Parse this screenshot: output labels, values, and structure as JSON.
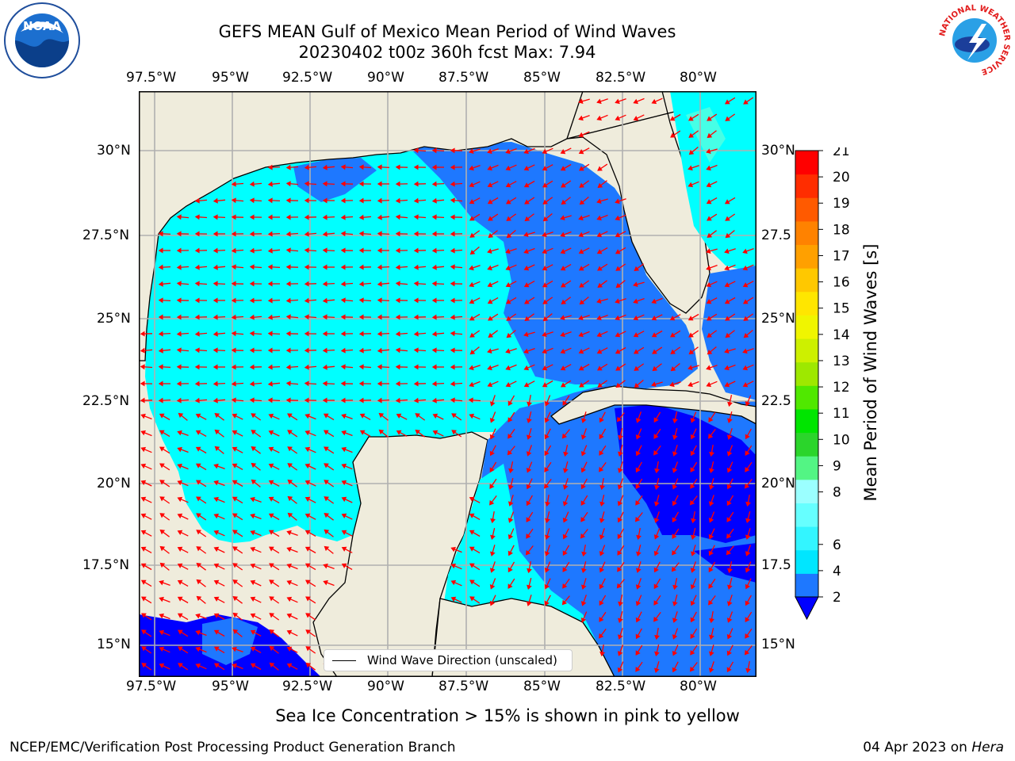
{
  "header": {
    "title_line1": "GEFS MEAN Gulf of Mexico Mean Period of Wind Waves",
    "title_line2": "20230402 t00z 360h fcst   Max: 7.94"
  },
  "axes": {
    "lon_labels": [
      "97.5°W",
      "95°W",
      "92.5°W",
      "90°W",
      "87.5°W",
      "85°W",
      "82.5°W",
      "80°W"
    ],
    "lat_labels_left": [
      "30°N",
      "27.5°N",
      "25°N",
      "22.5°N",
      "20°N",
      "17.5°N",
      "15°N"
    ],
    "lat_labels_right": [
      "30°N",
      "27.5",
      "25°N",
      "22.5",
      "20°N",
      "17.5",
      "15°N"
    ]
  },
  "legend": {
    "label": "Wind Wave Direction (unscaled)"
  },
  "colorbar": {
    "label": "Mean Period of Wind Waves [s]",
    "ticks": [
      "2",
      "4",
      "6",
      "8",
      "9",
      "10",
      "11",
      "12",
      "13",
      "14",
      "15",
      "16",
      "17",
      "18",
      "19",
      "20",
      "21"
    ],
    "colors": [
      "#1e78ff",
      "#00e6ff",
      "#33f5ff",
      "#66ffff",
      "#9bffff",
      "#53f584",
      "#2bd52b",
      "#00e500",
      "#50e800",
      "#9ee800",
      "#cdf000",
      "#f0f500",
      "#ffe600",
      "#ffc800",
      "#ffa000",
      "#ff8200",
      "#ff5a00",
      "#ff2d00",
      "#ff0000"
    ],
    "under_color": "#0000ff"
  },
  "map_colors": {
    "land": "#efecdc",
    "dark_blue": "#0000ff",
    "mid_blue": "#1e78ff",
    "cyan": "#00ffff",
    "light_cyan": "#46ffe6",
    "arrow": "#ff0000",
    "grid": "#b0b0b0"
  },
  "footer": {
    "note": "Sea Ice Concentration > 15% is shown in pink to yellow",
    "credit_left": "NCEP/EMC/Verification Post Processing Product Generation Branch",
    "credit_date": "04 Apr 2023 on",
    "credit_host": "Hera"
  },
  "logos": {
    "noaa": "NOAA",
    "nws": "NATIONAL WEATHER SERVICE"
  }
}
